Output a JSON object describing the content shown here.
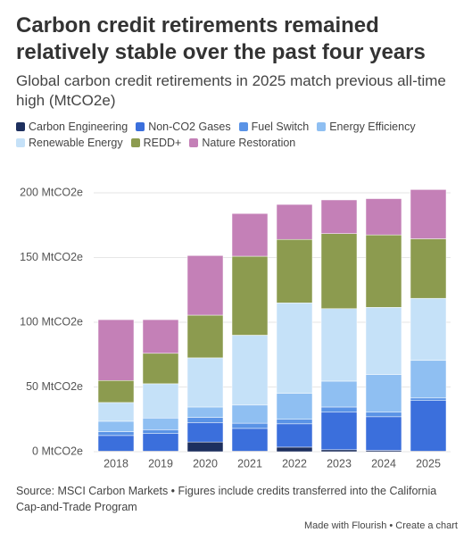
{
  "chart_data": {
    "type": "stacked-bar",
    "title": "Carbon credit retirements remained relatively stable over the past four years",
    "subtitle": "Global carbon credit retirements in 2025 match previous all-time high (MtCO2e)",
    "categories": [
      "2018",
      "2019",
      "2020",
      "2021",
      "2022",
      "2023",
      "2024",
      "2025"
    ],
    "series": [
      {
        "name": "Carbon Engineering",
        "color": "#1d2f5e",
        "values": [
          0.5,
          0.5,
          7.5,
          0.5,
          3.5,
          1.5,
          1,
          0.5
        ]
      },
      {
        "name": "Non-CO2 Gases",
        "color": "#3b6fdc",
        "values": [
          12,
          13.5,
          15,
          17.5,
          18,
          29,
          26,
          39
        ]
      },
      {
        "name": "Fuel Switch",
        "color": "#5a93e6",
        "values": [
          3,
          3,
          4,
          4,
          3.5,
          4,
          3.5,
          2
        ]
      },
      {
        "name": "Energy Efficiency",
        "color": "#8fbff2",
        "values": [
          8,
          9,
          8,
          14,
          20,
          20,
          29,
          29
        ]
      },
      {
        "name": "Renewable Energy",
        "color": "#c5e1f8",
        "values": [
          14.5,
          26.5,
          38,
          54,
          70,
          56,
          52,
          48
        ]
      },
      {
        "name": "REDD+",
        "color": "#8c9b4f",
        "values": [
          17,
          23.5,
          33,
          61,
          49,
          58,
          56,
          46
        ]
      },
      {
        "name": "Nature Restoration",
        "color": "#c480b7",
        "values": [
          47,
          26,
          46,
          33,
          27,
          26,
          28,
          38
        ]
      }
    ],
    "ylim": [
      0,
      205
    ],
    "yticks": [
      {
        "value": 0,
        "label": "0 MtCO2e"
      },
      {
        "value": 50,
        "label": "50 MtCO2e"
      },
      {
        "value": 100,
        "label": "100 MtCO2e"
      },
      {
        "value": 150,
        "label": "150 MtCO2e"
      },
      {
        "value": 200,
        "label": "200 MtCO2e"
      }
    ],
    "grid": true,
    "source": "Source: MSCI Carbon Markets • Figures include credits transferred into the California Cap-and-Trade Program",
    "footer": "Made with Flourish • Create a chart"
  }
}
